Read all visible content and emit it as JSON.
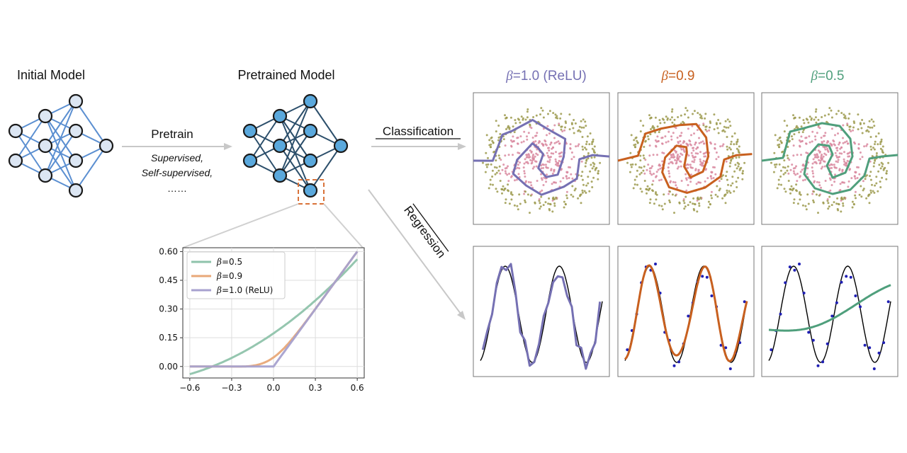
{
  "labels": {
    "initial_model": "Initial Model",
    "pretrained_model": "Pretrained Model",
    "pretrain": "Pretrain",
    "supervised": "Supervised,",
    "self_supervised": "Self-supervised,",
    "ellipsis": "……",
    "classification": "Classification",
    "regression": "Regression"
  },
  "columns": [
    {
      "beta_symbol": "β",
      "beta_text": "=1.0 (ReLU)",
      "color": "#7570b3"
    },
    {
      "beta_symbol": "β",
      "beta_text": "=0.9",
      "color": "#c8601f"
    },
    {
      "beta_symbol": "β",
      "beta_text": "=0.5",
      "color": "#4f9f7c"
    }
  ],
  "colors": {
    "input_node": "#dce6f3",
    "pretrained_node": "#5aa8dc",
    "initial_edge": "#5b8fd1",
    "pretrained_edge": "#2c4f6b",
    "arrow": "#c8c8c8",
    "zoom_box": "#d9733a",
    "point_red": "#d98aa0",
    "point_olive": "#9c9a4e",
    "regression_point": "#1f1fb4"
  },
  "chart_data": {
    "type": "line",
    "xlim": [
      -0.65,
      0.65
    ],
    "ylim": [
      -0.06,
      0.62
    ],
    "xticks": [
      -0.6,
      -0.3,
      0.0,
      0.3,
      0.6
    ],
    "xtick_labels": [
      "−0.6",
      "−0.3",
      "0.0",
      "0.3",
      "0.6"
    ],
    "yticks": [
      0.0,
      0.15,
      0.3,
      0.45,
      0.6
    ],
    "ytick_labels": [
      "0.00",
      "0.15",
      "0.30",
      "0.45",
      "0.60"
    ],
    "grid": true,
    "legend_position": "top-left",
    "series": [
      {
        "name": "β=0.5",
        "legend_symbol": "β",
        "legend_text": "=0.5",
        "beta": 0.5,
        "color": "#8fc3ab"
      },
      {
        "name": "β=0.9",
        "legend_symbol": "β",
        "legend_text": "=0.9",
        "beta": 0.9,
        "color": "#e8a878"
      },
      {
        "name": "β=1.0 (ReLU)",
        "legend_symbol": "β",
        "legend_text": "=1.0 (ReLU)",
        "beta": 1.0,
        "color": "#a7a1cf"
      }
    ],
    "x_range": [
      -0.6,
      0.6
    ]
  }
}
